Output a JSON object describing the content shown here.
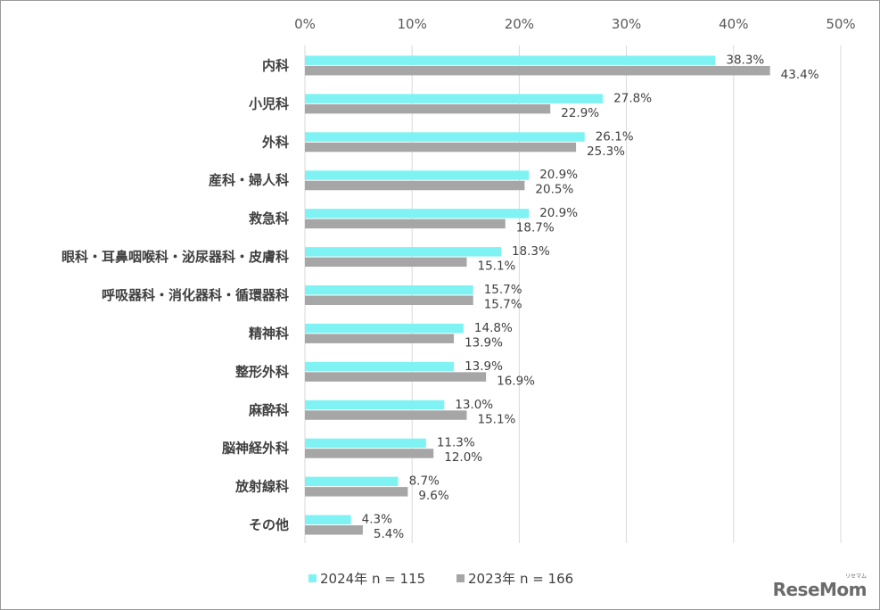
{
  "chart_data": {
    "type": "bar",
    "orientation": "horizontal",
    "categories": [
      "内科",
      "小児科",
      "外科",
      "産科・婦人科",
      "救急科",
      "眼科・耳鼻咽喉科・泌尿器科・皮膚科",
      "呼吸器科・消化器科・循環器科",
      "精神科",
      "整形外科",
      "麻酔科",
      "脳神経外科",
      "放射線科",
      "その他"
    ],
    "series": [
      {
        "name": "2024年 n = 115",
        "color": "#7ff3f3",
        "values": [
          38.3,
          27.8,
          26.1,
          20.9,
          20.9,
          18.3,
          15.7,
          14.8,
          13.9,
          13.0,
          11.3,
          8.7,
          4.3
        ]
      },
      {
        "name": "2023年 n = 166",
        "color": "#a6a6a6",
        "values": [
          43.4,
          22.9,
          25.3,
          20.5,
          18.7,
          15.1,
          15.7,
          13.9,
          16.9,
          15.1,
          12.0,
          9.6,
          5.4
        ]
      }
    ],
    "xlim": [
      0,
      50
    ],
    "ticks": [
      0,
      10,
      20,
      30,
      40,
      50
    ],
    "tick_labels": [
      "0%",
      "10%",
      "20%",
      "30%",
      "40%",
      "50%"
    ],
    "value_labels": [
      [
        "38.3%",
        "27.8%",
        "26.1%",
        "20.9%",
        "20.9%",
        "18.3%",
        "15.7%",
        "14.8%",
        "13.9%",
        "13.0%",
        "11.3%",
        "8.7%",
        "4.3%"
      ],
      [
        "43.4%",
        "22.9%",
        "25.3%",
        "20.5%",
        "18.7%",
        "15.1%",
        "15.7%",
        "13.9%",
        "16.9%",
        "15.1%",
        "12.0%",
        "9.6%",
        "5.4%"
      ]
    ],
    "grid": true,
    "legend": "bottom-center"
  },
  "logo": {
    "text": "ReseMom",
    "kana": "リセマム"
  }
}
